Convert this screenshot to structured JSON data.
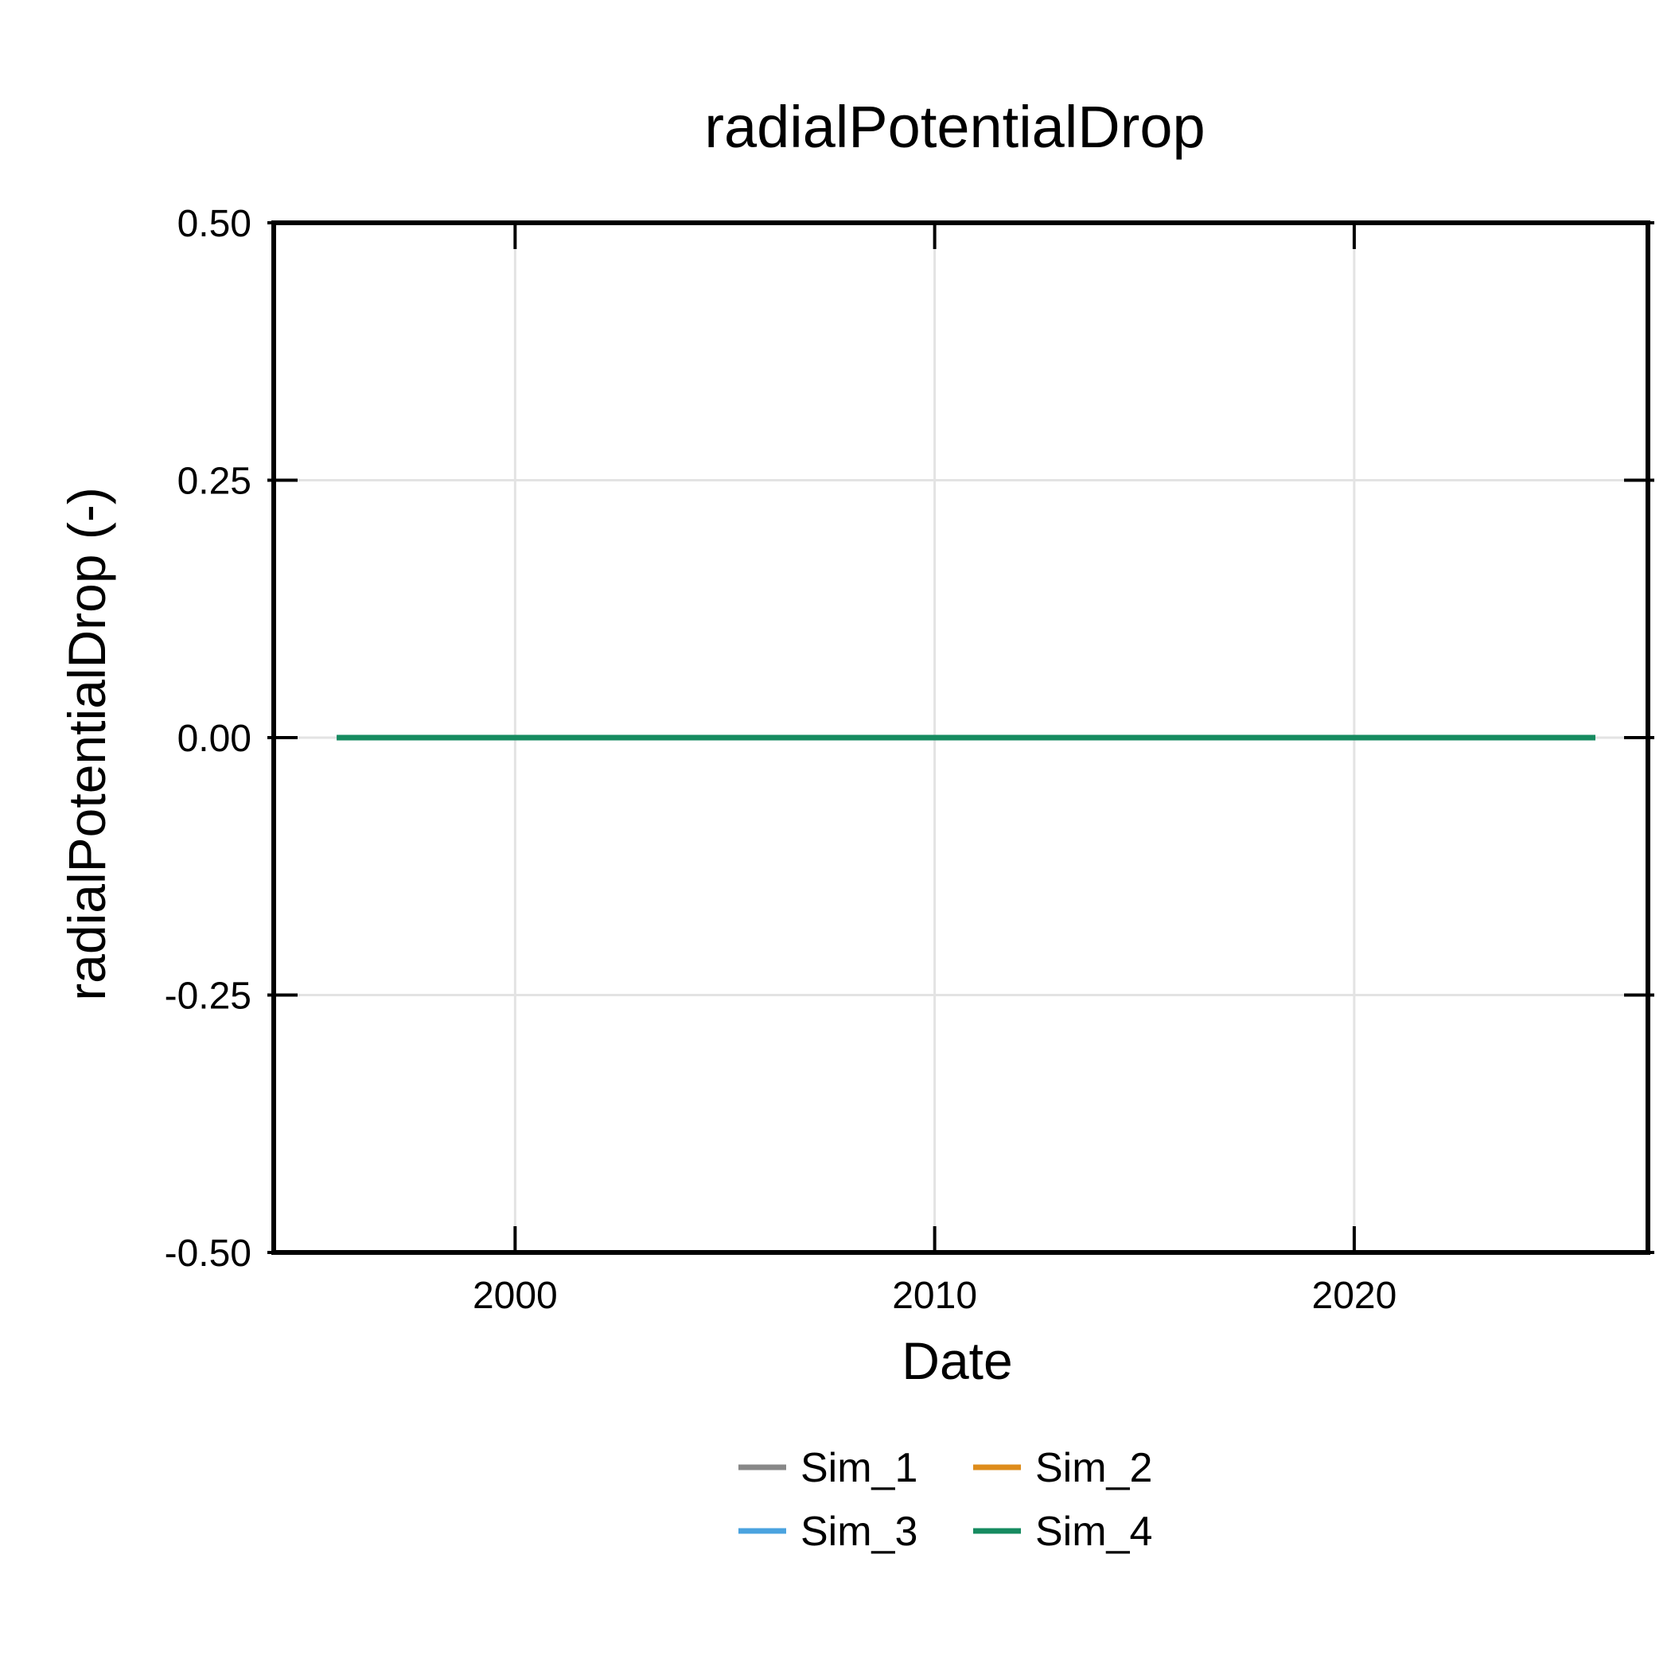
{
  "chart_data": {
    "type": "line",
    "title": "radialPotentialDrop",
    "xlabel": "Date",
    "ylabel": "radialPotentialDrop (-)",
    "x_axis": {
      "kind": "date",
      "range": [
        "1994-04-01",
        "2027-01-01"
      ],
      "ticks": [
        "2000-01-01",
        "2010-01-01",
        "2020-01-01"
      ],
      "tick_labels": [
        "2000",
        "2010",
        "2020"
      ]
    },
    "y_axis": {
      "range": [
        -0.5,
        0.5
      ],
      "ticks": [
        -0.5,
        -0.25,
        0.0,
        0.25,
        0.5
      ],
      "tick_labels": [
        "-0.50",
        "-0.25",
        "0.00",
        "0.25",
        "0.50"
      ]
    },
    "grid": true,
    "legend": {
      "position": "bottom-center",
      "columns": 2
    },
    "series": [
      {
        "name": "Sim_1",
        "color": "#888888",
        "x": [
          "1995-10-01",
          "2025-10-01"
        ],
        "y": [
          0.0,
          0.0
        ]
      },
      {
        "name": "Sim_2",
        "color": "#DE8C1B",
        "x": [
          "1995-10-01",
          "2025-10-01"
        ],
        "y": [
          0.0,
          0.0
        ]
      },
      {
        "name": "Sim_3",
        "color": "#4AA3DF",
        "x": [
          "1995-10-01",
          "2025-10-01"
        ],
        "y": [
          0.0,
          0.0
        ]
      },
      {
        "name": "Sim_4",
        "color": "#168B60",
        "x": [
          "1995-10-01",
          "2025-10-01"
        ],
        "y": [
          0.0,
          0.0
        ]
      }
    ]
  }
}
